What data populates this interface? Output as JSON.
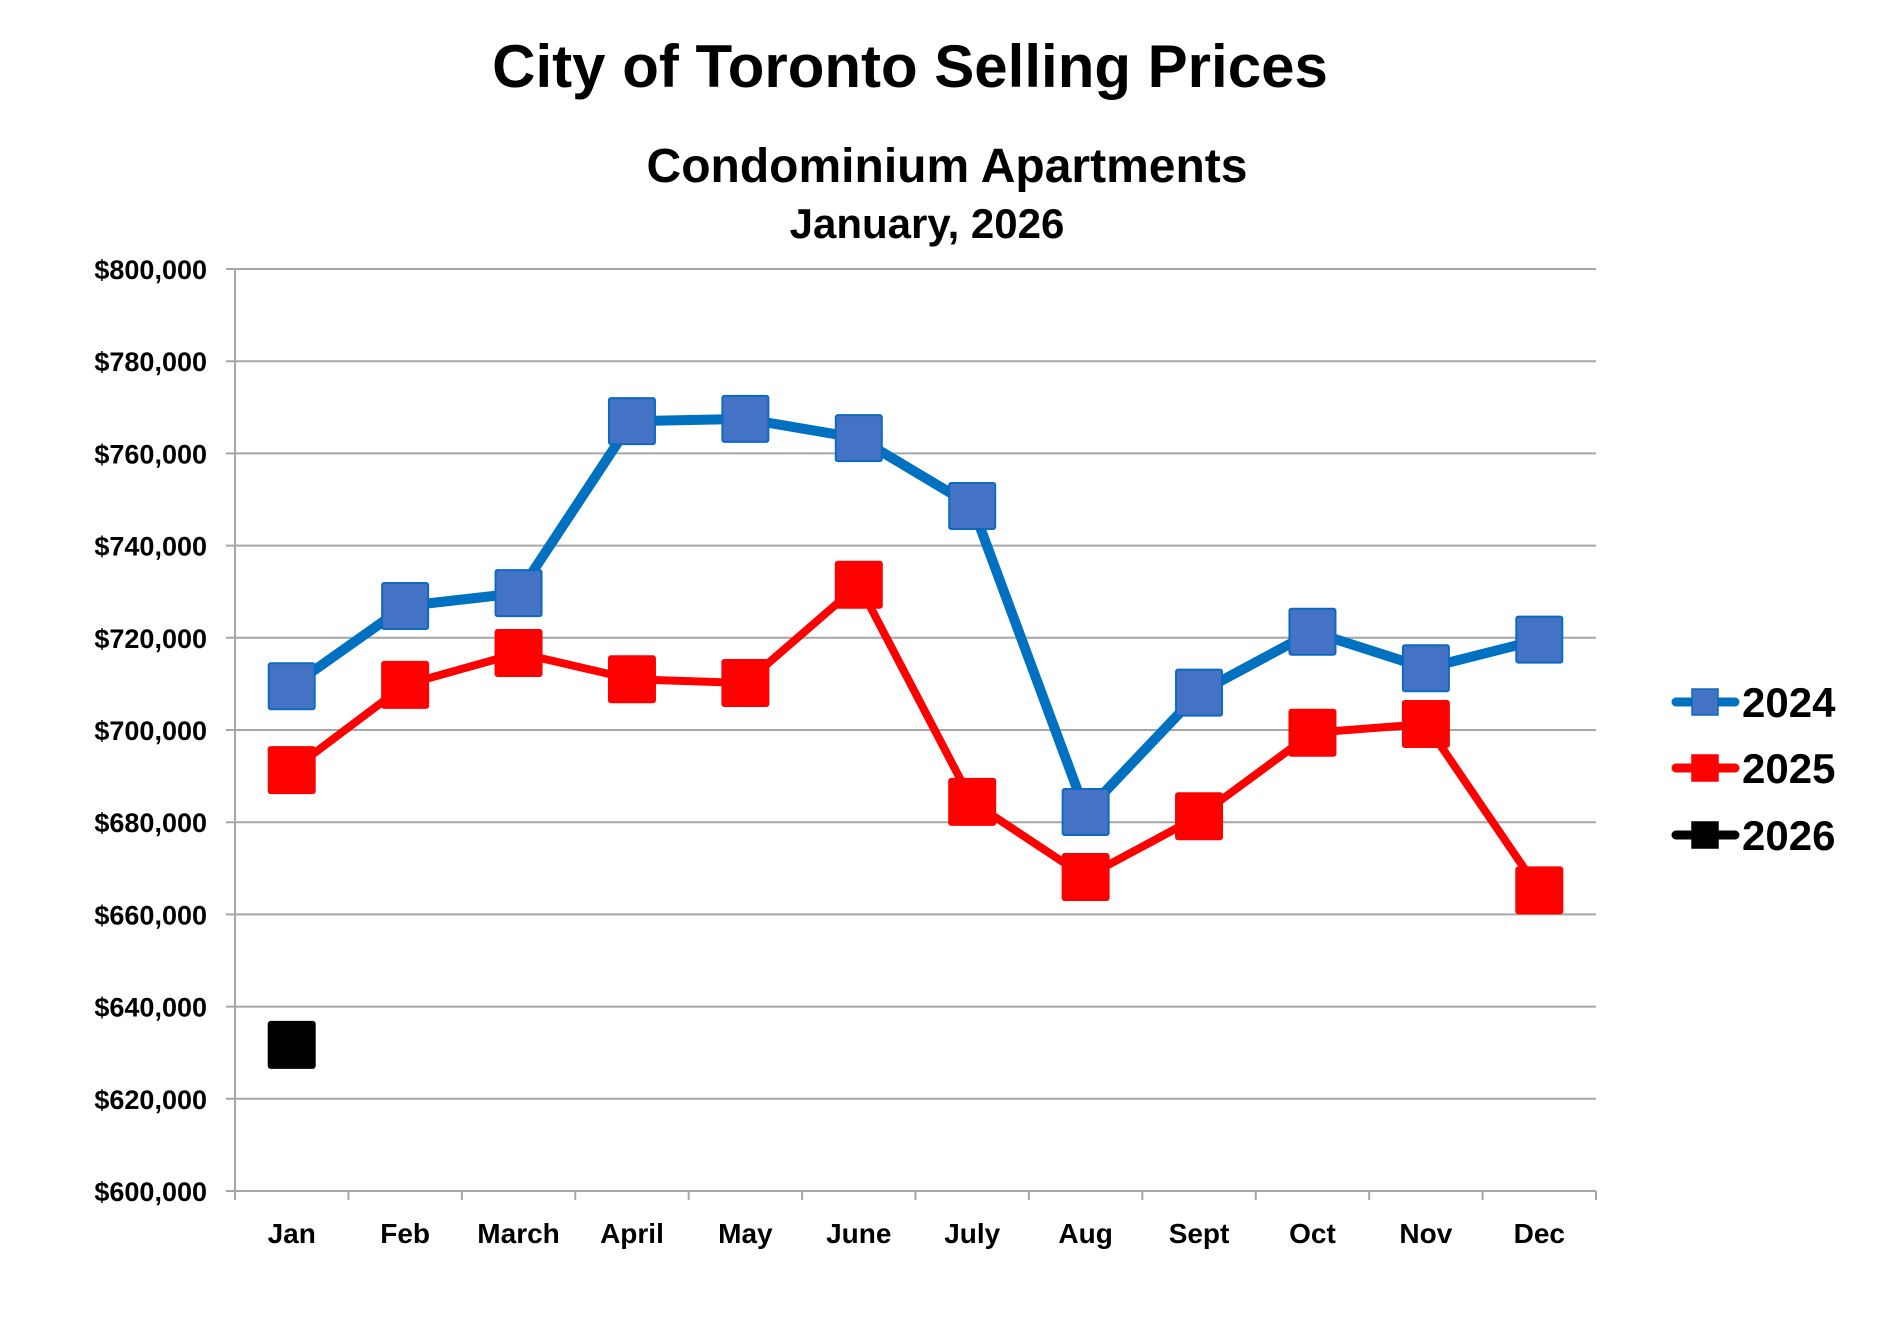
{
  "chart_data": {
    "type": "line",
    "title": "City of Toronto Selling Prices",
    "subtitle": "Condominium Apartments",
    "subtitle2": "January, 2026",
    "xlabel": "",
    "ylabel": "",
    "categories": [
      "Jan",
      "Feb",
      "March",
      "April",
      "May",
      "June",
      "July",
      "Aug",
      "Sept",
      "Oct",
      "Nov",
      "Dec"
    ],
    "ylim": [
      600000,
      800000
    ],
    "yticks": [
      600000,
      620000,
      640000,
      660000,
      680000,
      700000,
      720000,
      740000,
      760000,
      780000,
      800000
    ],
    "ytick_labels": [
      "$600,000",
      "$620,000",
      "$640,000",
      "$660,000",
      "$680,000",
      "$700,000",
      "$720,000",
      "$740,000",
      "$760,000",
      "$780,000",
      "$800,000"
    ],
    "grid": true,
    "legend_position": "right",
    "series": [
      {
        "name": "2024",
        "line_color": "#0070C0",
        "marker_fill": "#4472C4",
        "marker_stroke": "#0E6AC0",
        "values": [
          709500,
          726900,
          729700,
          767000,
          767500,
          763300,
          748600,
          682200,
          708100,
          721300,
          713400,
          719600
        ]
      },
      {
        "name": "2025",
        "line_color": "#FF0000",
        "marker_fill": "#FF0000",
        "marker_stroke": "#FF0000",
        "values": [
          691300,
          709800,
          716700,
          711000,
          710200,
          731500,
          684400,
          668100,
          681300,
          699400,
          701300,
          665200
        ]
      },
      {
        "name": "2026",
        "line_color": "#000000",
        "marker_fill": "#000000",
        "marker_stroke": "#000000",
        "values": [
          631700,
          null,
          null,
          null,
          null,
          null,
          null,
          null,
          null,
          null,
          null,
          null
        ]
      }
    ]
  }
}
